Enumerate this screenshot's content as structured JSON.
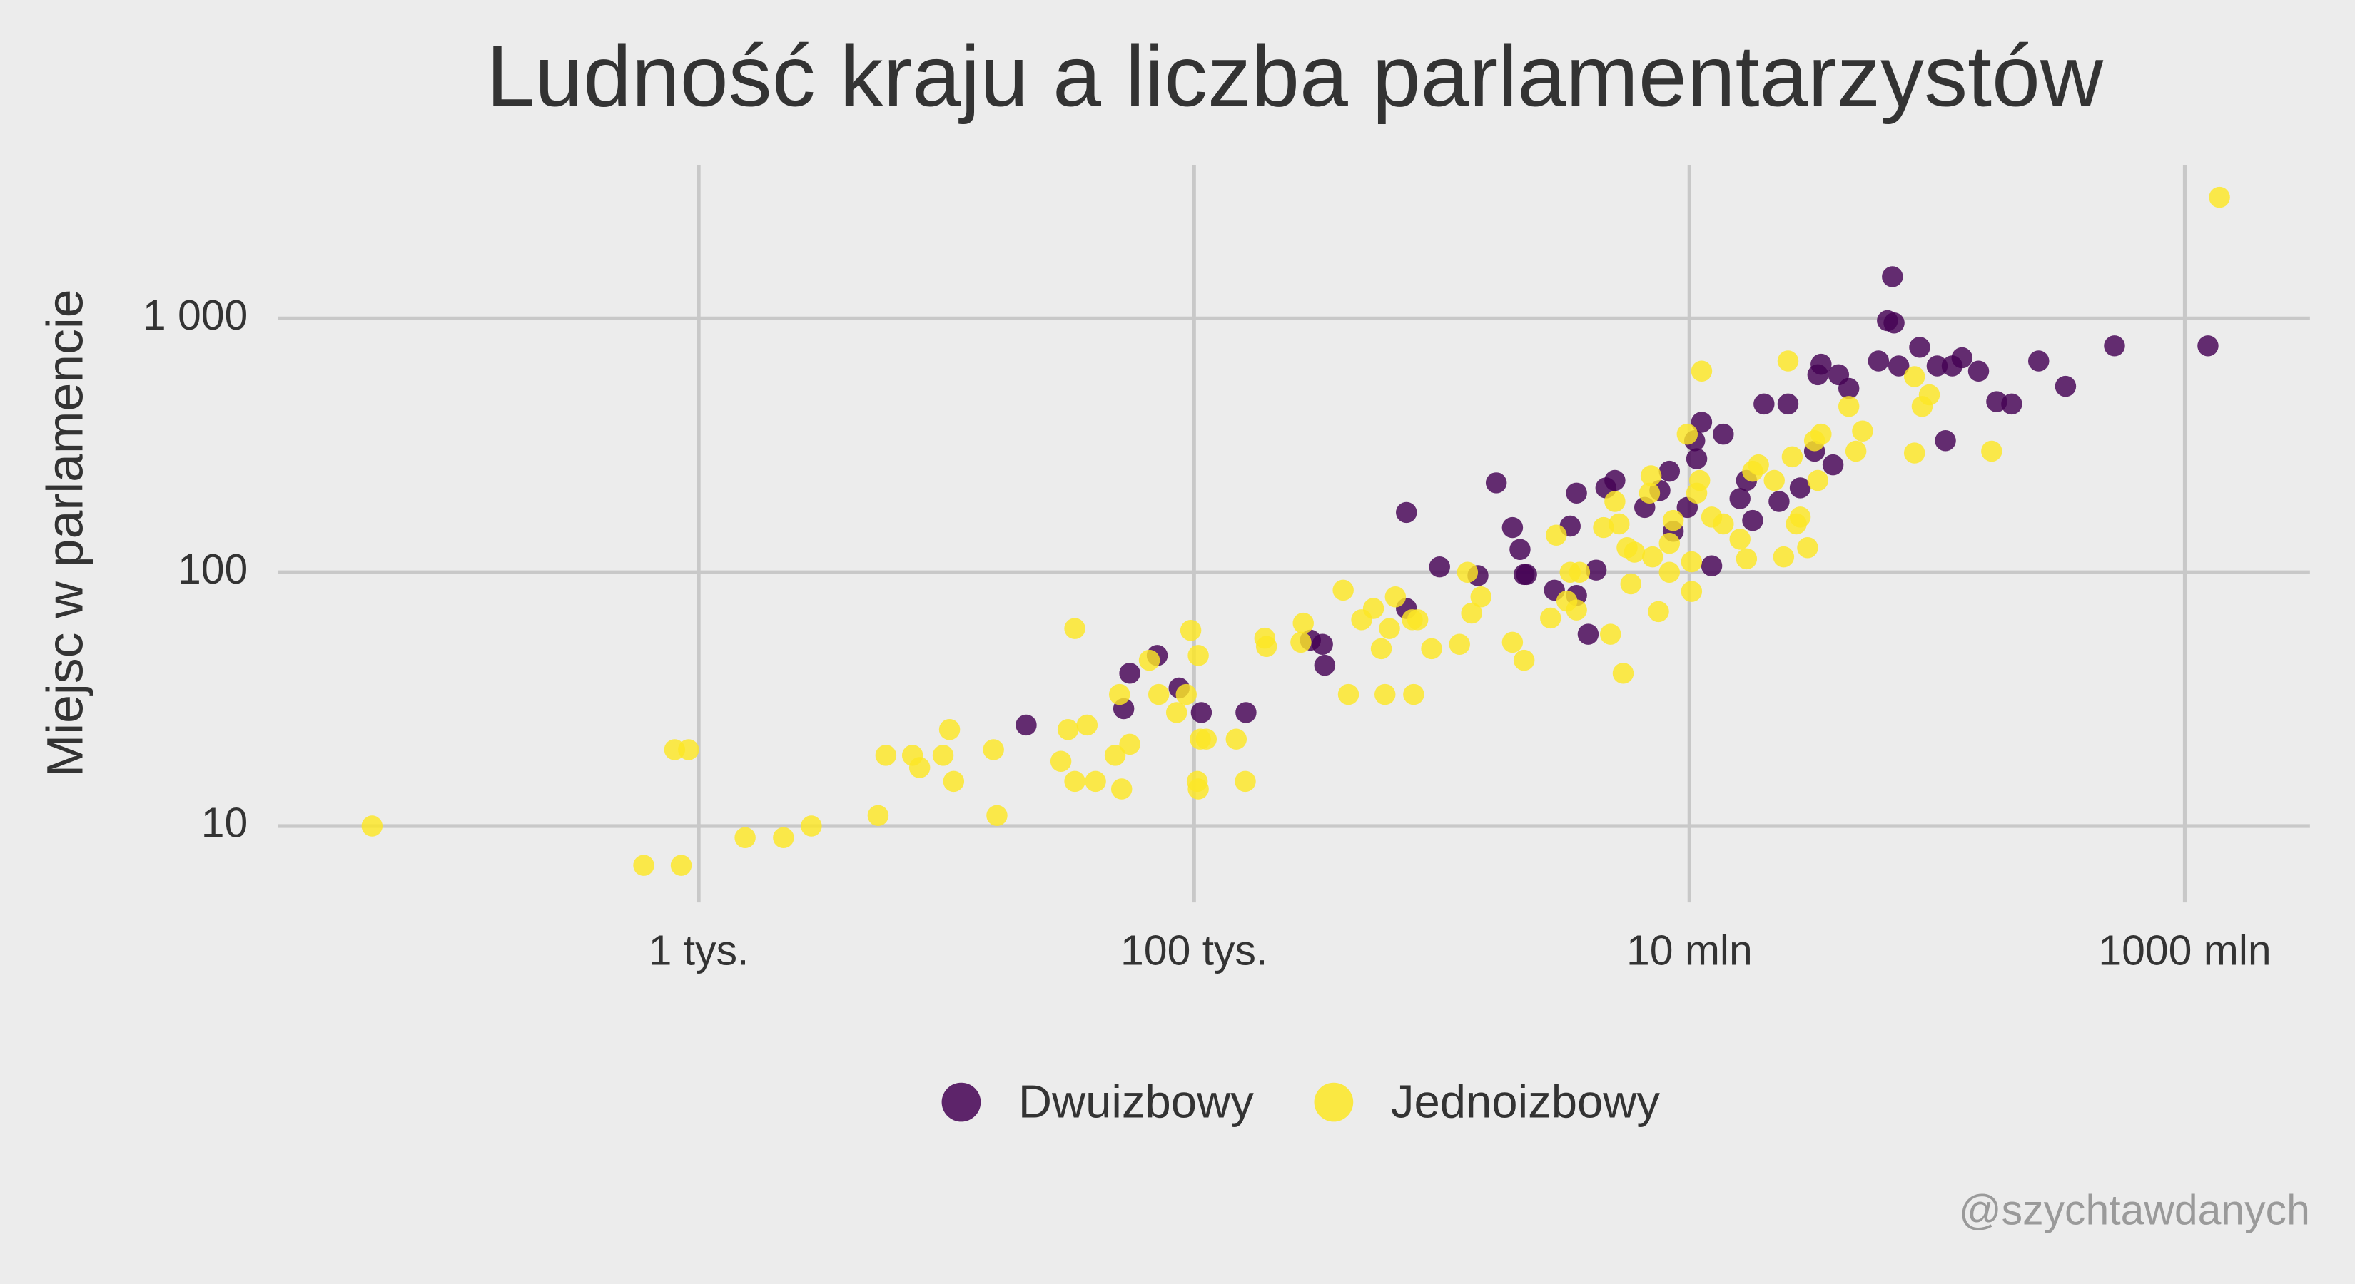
{
  "chart_data": {
    "type": "scatter",
    "title": "Ludność kraju a liczba parlamentarzystów",
    "y_label": "Miejsc w parlamencie",
    "watermark": "@szychtawdanych",
    "log_x": true,
    "log_y": true,
    "grid": true,
    "legend": "bottom",
    "xlim": [
      20,
      3200000000
    ],
    "ylim": [
      5,
      3500
    ],
    "xticks": [
      {
        "value": 1000,
        "label": "1 tys."
      },
      {
        "value": 100000,
        "label": "100 tys."
      },
      {
        "value": 10000000,
        "label": "10 mln"
      },
      {
        "value": 1000000000,
        "label": "1000 mln"
      }
    ],
    "yticks": [
      10,
      100,
      {
        "value": 1000,
        "label": "1 000"
      }
    ],
    "series": [
      {
        "name": "Dwuizbowy",
        "color": "#440154",
        "x": [
          21000,
          52000,
          55000,
          71000,
          87000,
          107000,
          162000,
          295000,
          330000,
          337000,
          720000,
          720000,
          980000,
          1400000,
          1660000,
          1930000,
          2070000,
          2150000,
          2200000,
          2850000,
          3300000,
          3500000,
          3500000,
          3900000,
          4200000,
          4600000,
          5000000,
          6600000,
          7600000,
          8300000,
          8600000,
          9800000,
          10500000,
          10700000,
          11200000,
          12300000,
          13700000,
          16000000,
          17000000,
          18000000,
          20000000,
          23000000,
          25000000,
          28000000,
          32000000,
          33000000,
          34000000,
          38000000,
          40000000,
          44000000,
          58000000,
          63000000,
          66000000,
          67000000,
          70000000,
          85000000,
          100000000,
          108000000,
          115000000,
          126000000,
          147000000,
          174000000,
          200000000,
          257000000,
          330000000,
          520000000,
          1240000000
        ],
        "values": [
          25,
          29,
          40,
          47,
          35,
          28,
          28,
          54,
          52,
          43,
          172,
          72,
          105,
          97,
          225,
          150,
          123,
          98,
          98,
          85,
          152,
          205,
          81,
          57,
          102,
          215,
          230,
          180,
          210,
          250,
          145,
          180,
          330,
          280,
          390,
          106,
          350,
          195,
          230,
          160,
          460,
          190,
          460,
          215,
          300,
          600,
          660,
          265,
          600,
          530,
          680,
          980,
          1460,
          960,
          650,
          770,
          650,
          330,
          650,
          700,
          620,
          470,
          460,
          680,
          540,
          780,
          780
        ]
      },
      {
        "name": "Jednoizbowy",
        "color": "#fde725",
        "x": [
          48,
          600,
          850,
          800,
          910,
          1540,
          2200,
          2850,
          5300,
          5700,
          7300,
          7800,
          9700,
          10300,
          10700,
          15500,
          16000,
          29000,
          31000,
          33000,
          33000,
          37000,
          40000,
          48000,
          51000,
          55000,
          50000,
          66000,
          72000,
          85000,
          93000,
          97000,
          104000,
          106000,
          103000,
          104000,
          112000,
          148000,
          161000,
          193000,
          196000,
          276000,
          270000,
          400000,
          420000,
          475000,
          530000,
          570000,
          615000,
          650000,
          590000,
          770000,
          760000,
          800000,
          910000,
          1180000,
          1270000,
          1320000,
          1440000,
          1930000,
          2150000,
          2750000,
          2900000,
          3300000,
          3600000,
          3500000,
          3200000,
          4800000,
          4500000,
          5000000,
          5200000,
          5600000,
          5800000,
          5400000,
          6000000,
          6900000,
          7100000,
          7500000,
          8300000,
          8300000,
          8600000,
          7000000,
          10200000,
          10200000,
          10700000,
          11200000,
          9800000,
          11000000,
          12300000,
          13700000,
          16000000,
          17000000,
          18000000,
          19000000,
          22000000,
          24000000,
          25000000,
          26000000,
          27000000,
          28000000,
          30000000,
          32000000,
          33000000,
          34000000,
          44000000,
          47000000,
          50000000,
          81000000,
          87000000,
          93000000,
          81000000,
          166000000,
          1380000000
        ],
        "values": [
          10,
          7,
          7,
          20,
          20,
          9,
          9,
          10,
          11,
          19,
          19,
          17,
          19,
          24,
          15,
          20,
          11,
          18,
          24,
          15,
          60,
          25,
          15,
          19,
          14,
          21,
          33,
          45,
          33,
          28,
          33,
          59,
          47,
          22,
          15,
          14,
          22,
          22,
          15,
          55,
          51,
          63,
          53,
          85,
          33,
          65,
          72,
          50,
          60,
          80,
          33,
          33,
          65,
          65,
          50,
          52,
          100,
          69,
          80,
          53,
          45,
          66,
          140,
          100,
          100,
          71,
          77,
          57,
          150,
          190,
          155,
          125,
          90,
          40,
          120,
          205,
          115,
          70,
          100,
          130,
          160,
          240,
          84,
          110,
          205,
          620,
          350,
          230,
          165,
          155,
          135,
          113,
          250,
          265,
          230,
          115,
          680,
          285,
          155,
          165,
          125,
          330,
          230,
          350,
          450,
          300,
          360,
          295,
          450,
          500,
          590,
          300,
          3000
        ]
      }
    ]
  }
}
